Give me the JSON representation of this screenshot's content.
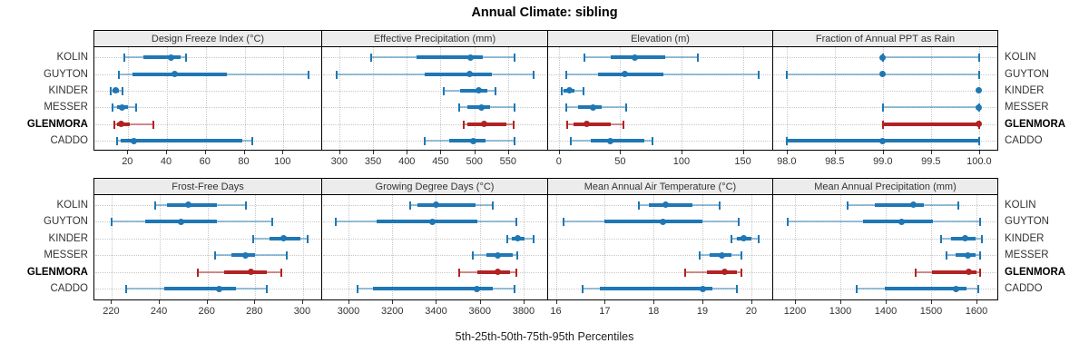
{
  "title": "Annual Climate: sibling",
  "caption": "5th-25th-50th-75th-95th Percentiles",
  "colors": {
    "series": "#1f77b4",
    "series_light": "rgba(31,119,180,0.45)",
    "highlight": "#b22222",
    "highlight_light": "rgba(178,34,34,0.5)",
    "strip_bg": "#ececec",
    "grid": "#c8c8c8",
    "border": "#000000",
    "text": "#333333"
  },
  "chart_data": {
    "type": "dotplot",
    "layout": "trellis 4x2 panels, horizontal percentile ranges per station",
    "stations": [
      "KOLIN",
      "GUYTON",
      "KINDER",
      "MESSER",
      "GLENMORA",
      "CADDO"
    ],
    "highlight_station": "GLENMORA",
    "percentile_labels": [
      "5th",
      "25th",
      "50th",
      "75th",
      "95th"
    ],
    "xlabel": "5th-25th-50th-75th-95th Percentiles",
    "panels": [
      {
        "title": "Design Freeze Index (°C)",
        "xlim": [
          3,
          120
        ],
        "ticks": [
          20,
          40,
          60,
          80,
          100
        ],
        "tick_labels": [
          "20",
          "40",
          "60",
          "80",
          "100"
        ],
        "values": [
          [
            18,
            28,
            42,
            47,
            50
          ],
          [
            15,
            22,
            44,
            71,
            113
          ],
          [
            11,
            12,
            13.5,
            15,
            17
          ],
          [
            12,
            14,
            17,
            20,
            24
          ],
          [
            13,
            14,
            16.5,
            21,
            33
          ],
          [
            14,
            16,
            23,
            79,
            84
          ]
        ]
      },
      {
        "title": "Effective Precipitation (mm)",
        "xlim": [
          276,
          608
        ],
        "ticks": [
          300,
          350,
          400,
          450,
          500,
          550
        ],
        "tick_labels": [
          "300",
          "350",
          "400",
          "450",
          "500",
          "550"
        ],
        "values": [
          [
            347,
            415,
            494,
            512,
            560
          ],
          [
            296,
            427,
            493,
            526,
            588
          ],
          [
            455,
            479,
            507,
            519,
            531
          ],
          [
            478,
            490,
            510,
            523,
            560
          ],
          [
            484,
            490,
            514,
            548,
            558
          ],
          [
            427,
            463,
            499,
            516,
            559
          ]
        ]
      },
      {
        "title": "Elevation (m)",
        "xlim": [
          -8,
          174
        ],
        "ticks": [
          0,
          50,
          100,
          150
        ],
        "tick_labels": [
          "0",
          "50",
          "100",
          "150"
        ],
        "values": [
          [
            21,
            42,
            62,
            87,
            113
          ],
          [
            6,
            32,
            54,
            85,
            163
          ],
          [
            2,
            4,
            9,
            13,
            20
          ],
          [
            6,
            16,
            28,
            35,
            55
          ],
          [
            7,
            12,
            23,
            42,
            53
          ],
          [
            10,
            26,
            42,
            70,
            76
          ]
        ]
      },
      {
        "title": "Fraction of Annual PPT as Rain",
        "xlim": [
          97.87,
          100.19
        ],
        "ticks": [
          98.0,
          98.5,
          99.0,
          99.5,
          100.0
        ],
        "tick_labels": [
          "98.0",
          "98.5",
          "99.0",
          "99.5",
          "100.0"
        ],
        "values": [
          [
            99,
            99,
            99,
            99,
            100
          ],
          [
            98,
            99,
            99,
            99,
            100
          ],
          [
            100,
            100,
            100,
            100,
            100
          ],
          [
            99,
            100,
            100,
            100,
            100
          ],
          [
            99,
            99,
            100,
            100,
            100
          ],
          [
            98,
            98,
            99,
            100,
            100
          ]
        ]
      },
      {
        "title": "Frost-Free Days",
        "xlim": [
          213,
          308
        ],
        "ticks": [
          220,
          240,
          260,
          280,
          300
        ],
        "tick_labels": [
          "220",
          "240",
          "260",
          "280",
          "300"
        ],
        "values": [
          [
            238,
            243,
            252,
            264,
            276
          ],
          [
            220,
            234,
            249,
            264,
            287
          ],
          [
            279,
            286,
            292,
            299,
            302
          ],
          [
            263,
            270,
            276,
            280,
            293
          ],
          [
            256,
            267,
            278,
            285,
            291
          ],
          [
            226,
            242,
            265,
            272,
            285
          ]
        ]
      },
      {
        "title": "Growing Degree Days (°C)",
        "xlim": [
          2884,
          3908
        ],
        "ticks": [
          3000,
          3200,
          3400,
          3600,
          3800
        ],
        "tick_labels": [
          "3000",
          "3200",
          "3400",
          "3600",
          "3800"
        ],
        "values": [
          [
            3280,
            3315,
            3400,
            3580,
            3660
          ],
          [
            2940,
            3130,
            3385,
            3590,
            3765
          ],
          [
            3725,
            3745,
            3775,
            3805,
            3845
          ],
          [
            3570,
            3630,
            3680,
            3750,
            3770
          ],
          [
            3505,
            3590,
            3680,
            3740,
            3765
          ],
          [
            3040,
            3110,
            3585,
            3660,
            3760
          ]
        ]
      },
      {
        "title": "Mean Annual Air Temperature (°C)",
        "xlim": [
          15.86,
          20.43
        ],
        "ticks": [
          16,
          17,
          18,
          19,
          20
        ],
        "tick_labels": [
          "16",
          "17",
          "18",
          "19",
          "20"
        ],
        "values": [
          [
            17.7,
            17.9,
            18.25,
            18.8,
            19.35
          ],
          [
            16.15,
            17.0,
            18.2,
            19.0,
            19.75
          ],
          [
            19.6,
            19.7,
            19.85,
            20.0,
            20.15
          ],
          [
            18.95,
            19.15,
            19.4,
            19.6,
            19.8
          ],
          [
            18.65,
            19.1,
            19.45,
            19.7,
            19.8
          ],
          [
            16.55,
            16.9,
            19.0,
            19.2,
            19.7
          ]
        ]
      },
      {
        "title": "Mean Annual Precipitation (mm)",
        "xlim": [
          1154,
          1646
        ],
        "ticks": [
          1200,
          1300,
          1400,
          1500,
          1600
        ],
        "tick_labels": [
          "1200",
          "1300",
          "1400",
          "1500",
          "1600"
        ],
        "values": [
          [
            1316,
            1375,
            1461,
            1484,
            1560
          ],
          [
            1184,
            1349,
            1434,
            1504,
            1608
          ],
          [
            1522,
            1544,
            1574,
            1597,
            1612
          ],
          [
            1534,
            1554,
            1580,
            1597,
            1607
          ],
          [
            1465,
            1501,
            1582,
            1600,
            1607
          ],
          [
            1336,
            1398,
            1554,
            1577,
            1603
          ]
        ]
      }
    ]
  }
}
